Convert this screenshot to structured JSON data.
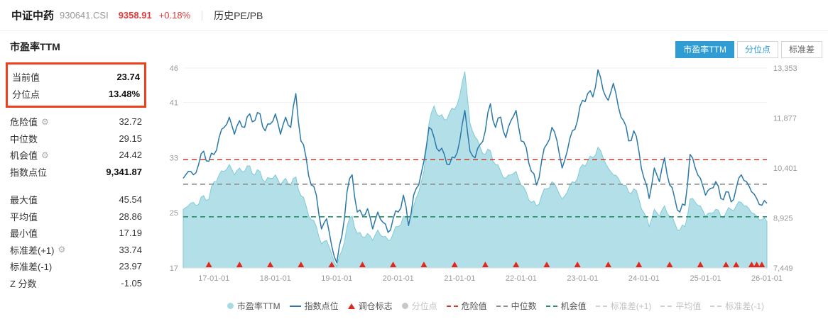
{
  "header": {
    "name": "中证中药",
    "code": "930641.CSI",
    "price": "9358.91",
    "change": "+0.18%",
    "section": "历史PE/PB"
  },
  "tabs": [
    {
      "name": "tab-pe-ttm",
      "label": "市盈率TTM",
      "active": true
    },
    {
      "name": "tab-percentile",
      "label": "分位点",
      "active": false
    },
    {
      "name": "tab-stddev",
      "label": "标准差",
      "active": false
    }
  ],
  "stats": {
    "title": "市盈率TTM",
    "highlight": [
      {
        "label": "当前值",
        "value": "23.74"
      },
      {
        "label": "分位点",
        "value": "13.48%"
      }
    ],
    "rows": [
      {
        "label": "危险值",
        "value": "32.72",
        "gear": true
      },
      {
        "label": "中位数",
        "value": "29.15"
      },
      {
        "label": "机会值",
        "value": "24.42",
        "gear": true
      },
      {
        "label": "指数点位",
        "value": "9,341.87",
        "bold": true
      },
      {
        "label": "最大值",
        "value": "45.54",
        "gap": true
      },
      {
        "label": "平均值",
        "value": "28.86"
      },
      {
        "label": "最小值",
        "value": "17.19"
      },
      {
        "label": "标准差(+1)",
        "value": "33.74",
        "gear": true
      },
      {
        "label": "标准差(-1)",
        "value": "23.97"
      },
      {
        "label": "Z 分数",
        "value": "-1.05"
      }
    ]
  },
  "icons": {
    "gear": "⚙"
  },
  "colors": {
    "accent": "#2f9cd3",
    "up_red": "#e23b3b",
    "highlight_border": "#ee3f1f",
    "pe_fill": "#a6dbe4",
    "pe_stroke": "#7ecbd6",
    "index_line": "#2b78a9",
    "danger": "#c43a2d",
    "median": "#8c8c8c",
    "opportunity": "#209263",
    "marker": "#e0281e"
  },
  "chart_data": {
    "type": "line+area",
    "title": "市盈率TTM",
    "start": "16-07",
    "freq": "monthly",
    "series": [
      {
        "name": "市盈率TTM",
        "kind": "area",
        "axis": "left",
        "values": [
          25.5,
          26.0,
          26.5,
          26.2,
          27.5,
          27.0,
          29.5,
          30.5,
          31.0,
          32.0,
          30.5,
          31.5,
          31.0,
          31.8,
          30.5,
          31.0,
          29.5,
          30.0,
          30.5,
          29.0,
          30.0,
          29.0,
          30.2,
          27.5,
          26.0,
          24.0,
          23.0,
          20.5,
          21.0,
          19.0,
          17.2,
          19.5,
          23.0,
          24.5,
          22.0,
          21.5,
          22.0,
          21.0,
          22.5,
          21.5,
          21.0,
          22.0,
          23.0,
          24.5,
          23.5,
          26.0,
          28.0,
          31.0,
          38.0,
          40.5,
          39.0,
          38.5,
          39.5,
          40.0,
          42.0,
          45.5,
          38.0,
          36.0,
          34.5,
          33.5,
          34.0,
          32.0,
          31.0,
          30.0,
          30.5,
          31.0,
          29.0,
          28.0,
          26.5,
          26.0,
          27.5,
          28.5,
          29.5,
          28.5,
          27.0,
          28.0,
          29.5,
          30.0,
          32.0,
          32.5,
          33.0,
          34.5,
          33.0,
          31.5,
          30.5,
          30.0,
          29.0,
          28.0,
          28.5,
          27.0,
          25.0,
          23.0,
          25.5,
          24.5,
          26.0,
          24.5,
          23.5,
          22.5,
          23.0,
          27.0,
          26.5,
          26.0,
          24.5,
          25.0,
          25.5,
          24.5,
          25.0,
          25.5,
          26.0,
          26.5,
          26.0,
          25.0,
          24.5,
          24.0,
          23.74
        ]
      },
      {
        "name": "指数点位",
        "kind": "line",
        "axis": "right",
        "values": [
          10100,
          10300,
          10200,
          10500,
          10900,
          10600,
          10800,
          11300,
          11600,
          11900,
          11400,
          11800,
          11600,
          12000,
          11800,
          12000,
          11500,
          11700,
          12000,
          11400,
          11900,
          11600,
          12600,
          11200,
          10700,
          9900,
          9600,
          8600,
          8900,
          8100,
          7600,
          8400,
          9700,
          10200,
          9100,
          9000,
          9200,
          8600,
          9100,
          8800,
          8500,
          8900,
          9100,
          9600,
          8700,
          9600,
          9900,
          10600,
          11600,
          11300,
          10900,
          10800,
          10500,
          10700,
          11200,
          12100,
          10900,
          10700,
          11100,
          11500,
          12300,
          11600,
          11900,
          11300,
          11800,
          12100,
          11200,
          11000,
          10300,
          9900,
          10600,
          11100,
          11600,
          11200,
          10400,
          10900,
          11500,
          11800,
          12400,
          12600,
          12500,
          13300,
          12700,
          12400,
          12900,
          12200,
          11800,
          11200,
          11500,
          10900,
          10100,
          9500,
          10400,
          10000,
          10700,
          9900,
          9500,
          9100,
          9300,
          10800,
          10400,
          10100,
          9600,
          9800,
          10000,
          9500,
          9700,
          9400,
          9800,
          10200,
          10000,
          9700,
          9500,
          9300,
          9359
        ]
      }
    ],
    "left_axis": {
      "min": 17,
      "max": 46,
      "ticks": [
        {
          "v": 17,
          "label": "17"
        },
        {
          "v": 25,
          "label": "25"
        },
        {
          "v": 33,
          "label": "33"
        },
        {
          "v": 41,
          "label": "41"
        },
        {
          "v": 46,
          "label": "46"
        }
      ]
    },
    "right_axis": {
      "min": 7449,
      "max": 13353,
      "ticks": [
        {
          "v": 7449,
          "label": "7,449"
        },
        {
          "v": 8925,
          "label": "8,925"
        },
        {
          "v": 10401,
          "label": "10,401"
        },
        {
          "v": 11877,
          "label": "11,877"
        },
        {
          "v": 13353,
          "label": "13,353"
        }
      ]
    },
    "x_ticks": [
      {
        "m": "17-01",
        "label": "17-01-01"
      },
      {
        "m": "18-01",
        "label": "18-01-01"
      },
      {
        "m": "19-01",
        "label": "19-01-01"
      },
      {
        "m": "20-01",
        "label": "20-01-01"
      },
      {
        "m": "21-01",
        "label": "21-01-01"
      },
      {
        "m": "22-01",
        "label": "22-01-01"
      },
      {
        "m": "23-01",
        "label": "23-01-01"
      },
      {
        "m": "24-01",
        "label": "24-01-01"
      },
      {
        "m": "25-01",
        "label": "25-01-01"
      },
      {
        "m": "26-01",
        "label": "26-01-01"
      }
    ],
    "reference_lines": [
      {
        "name": "危险值",
        "value": 32.72,
        "color": "#c43a2d"
      },
      {
        "name": "中位数",
        "value": 29.15,
        "color": "#8c8c8c"
      },
      {
        "name": "机会值",
        "value": 24.42,
        "color": "#209263"
      }
    ],
    "rebalance_markers": [
      "16-12",
      "17-06",
      "17-12",
      "18-06",
      "18-12",
      "19-06",
      "19-12",
      "20-06",
      "20-12",
      "21-06",
      "21-12",
      "22-06",
      "22-12",
      "23-06",
      "23-12",
      "24-06",
      "24-12",
      "25-05",
      "25-07",
      "25-10",
      "25-11",
      "25-12"
    ]
  },
  "legend": [
    {
      "name": "legend-pe-ttm",
      "label": "市盈率TTM",
      "marker": "circle",
      "color": "#a6dbe4",
      "active": true
    },
    {
      "name": "legend-index",
      "label": "指数点位",
      "marker": "line",
      "color": "#2b78a9",
      "active": true
    },
    {
      "name": "legend-rebalance",
      "label": "调仓标志",
      "marker": "triangle",
      "color": "#e0281e",
      "active": true
    },
    {
      "name": "legend-percentile",
      "label": "分位点",
      "marker": "circle",
      "color": "#c8c8c8",
      "active": false
    },
    {
      "name": "legend-danger",
      "label": "危险值",
      "marker": "dash",
      "color": "#c43a2d",
      "active": true
    },
    {
      "name": "legend-median",
      "label": "中位数",
      "marker": "dash",
      "color": "#8c8c8c",
      "active": true
    },
    {
      "name": "legend-opportunity",
      "label": "机会值",
      "marker": "dash",
      "color": "#209263",
      "active": true
    },
    {
      "name": "legend-std-plus1",
      "label": "标准差(+1)",
      "marker": "dash",
      "color": "#d0d0d0",
      "active": false
    },
    {
      "name": "legend-average",
      "label": "平均值",
      "marker": "dash",
      "color": "#d0d0d0",
      "active": false
    },
    {
      "name": "legend-std-minus1",
      "label": "标准差(-1)",
      "marker": "dash",
      "color": "#d0d0d0",
      "active": false
    }
  ]
}
